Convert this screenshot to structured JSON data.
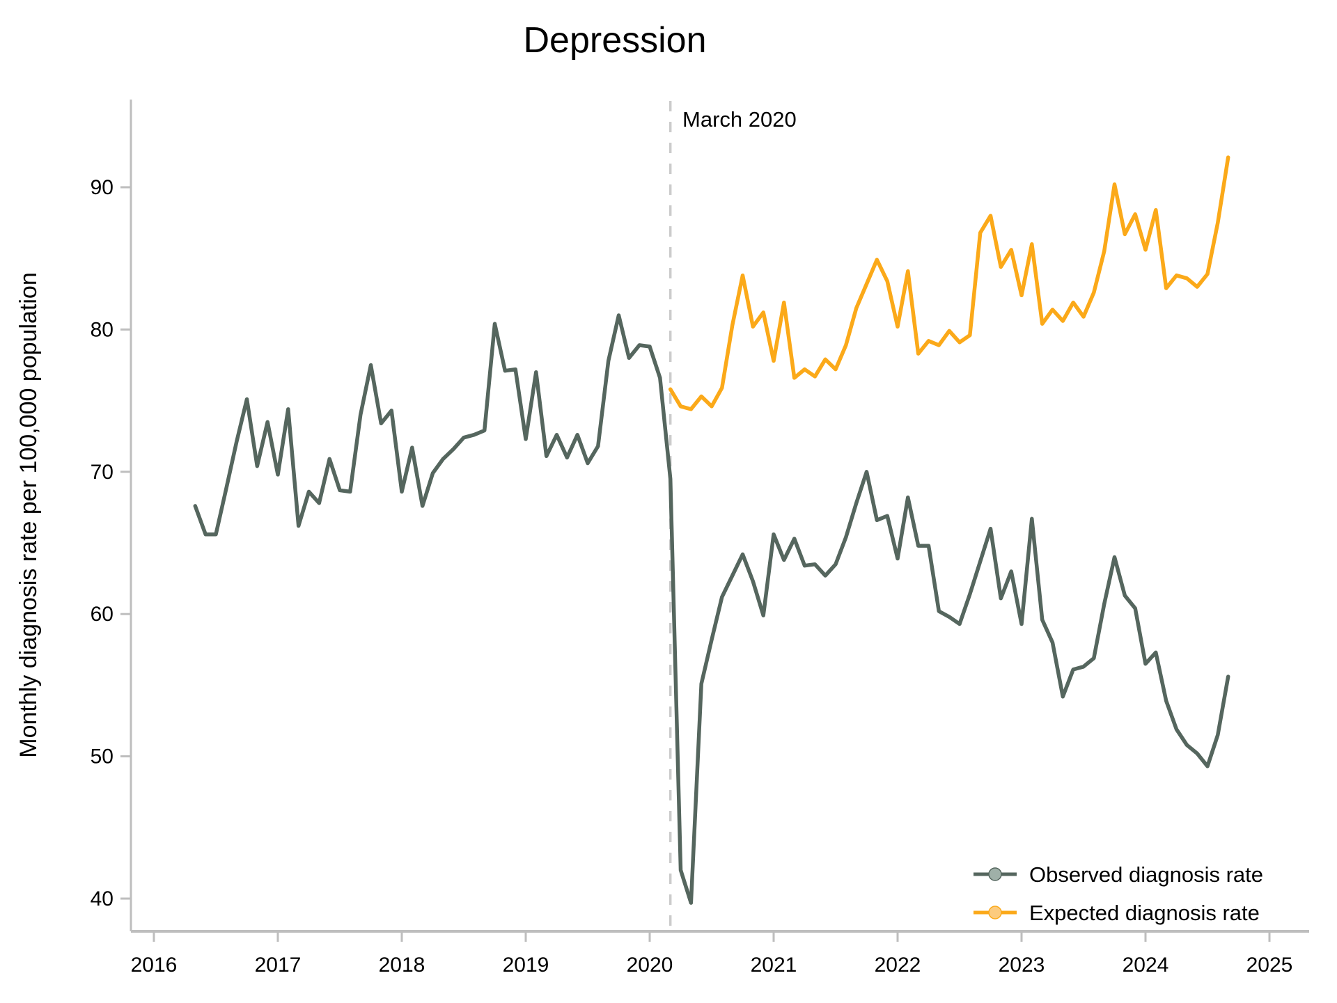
{
  "chart_data": {
    "type": "line",
    "title": "Depression",
    "xlabel": "",
    "ylabel": "Monthly diagnosis rate per 100,000 population",
    "ylim": [
      37.5,
      95.5
    ],
    "xlim": [
      2015.82,
      2025.35
    ],
    "grid": false,
    "legend_position": "bottom-right-inside",
    "yticks": [
      40,
      50,
      60,
      70,
      80,
      90
    ],
    "xticks": [
      2016,
      2017,
      2018,
      2019,
      2020,
      2021,
      2022,
      2023,
      2024,
      2025
    ],
    "annotation": {
      "label": "March 2020",
      "x": 2020.1667,
      "line_style": "dashed",
      "line_color": "#cbcbcb"
    },
    "axis_color": "#bebebe",
    "series": [
      {
        "name": "Observed diagnosis rate",
        "color": "#55665E",
        "marker_fill": "#9fb0a8",
        "start_year": 2016,
        "start_month": 5,
        "values": [
          67.6,
          65.6,
          65.6,
          68.8,
          72.1,
          75.1,
          70.4,
          73.5,
          69.8,
          74.4,
          66.2,
          68.6,
          67.8,
          70.9,
          68.7,
          68.6,
          74.0,
          77.5,
          73.4,
          74.3,
          68.6,
          71.7,
          67.6,
          69.9,
          70.9,
          71.6,
          72.4,
          72.6,
          72.9,
          80.4,
          77.1,
          77.2,
          72.3,
          77.0,
          71.1,
          72.6,
          71.0,
          72.6,
          70.6,
          71.8,
          77.8,
          81.0,
          78.0,
          78.9,
          78.8,
          76.6,
          69.5,
          42.0,
          39.7,
          55.1,
          58.2,
          61.2,
          62.7,
          64.2,
          62.3,
          59.9,
          65.6,
          63.8,
          65.3,
          63.4,
          63.5,
          62.7,
          63.5,
          65.4,
          67.8,
          70.0,
          66.6,
          66.9,
          63.9,
          68.2,
          64.8,
          64.8,
          60.2,
          59.8,
          59.3,
          61.4,
          63.7,
          66.0,
          61.1,
          63.0,
          59.3,
          66.7,
          59.6,
          58.0,
          54.2,
          56.1,
          56.3,
          56.9,
          60.7,
          64.0,
          61.3,
          60.4,
          56.5,
          57.3,
          53.9,
          51.9,
          50.8,
          50.2,
          49.3,
          51.5,
          55.6
        ]
      },
      {
        "name": "Expected diagnosis rate",
        "color": "#FBA919",
        "marker_fill": "#fccb7e",
        "start_year": 2020,
        "start_month": 3,
        "values": [
          75.8,
          74.6,
          74.4,
          75.3,
          74.6,
          75.9,
          80.3,
          83.8,
          80.2,
          81.2,
          77.8,
          81.9,
          76.6,
          77.2,
          76.7,
          77.9,
          77.2,
          78.9,
          81.5,
          83.2,
          84.9,
          83.4,
          80.2,
          84.1,
          78.3,
          79.2,
          78.9,
          79.9,
          79.1,
          79.6,
          86.8,
          88.0,
          84.4,
          85.6,
          82.4,
          86.0,
          80.4,
          81.4,
          80.6,
          81.9,
          80.9,
          82.6,
          85.5,
          90.2,
          86.7,
          88.1,
          85.6,
          88.4,
          82.9,
          83.8,
          83.6,
          83.0,
          83.9,
          87.5,
          92.1
        ]
      }
    ],
    "legend": [
      "Observed diagnosis rate",
      "Expected diagnosis rate"
    ]
  }
}
